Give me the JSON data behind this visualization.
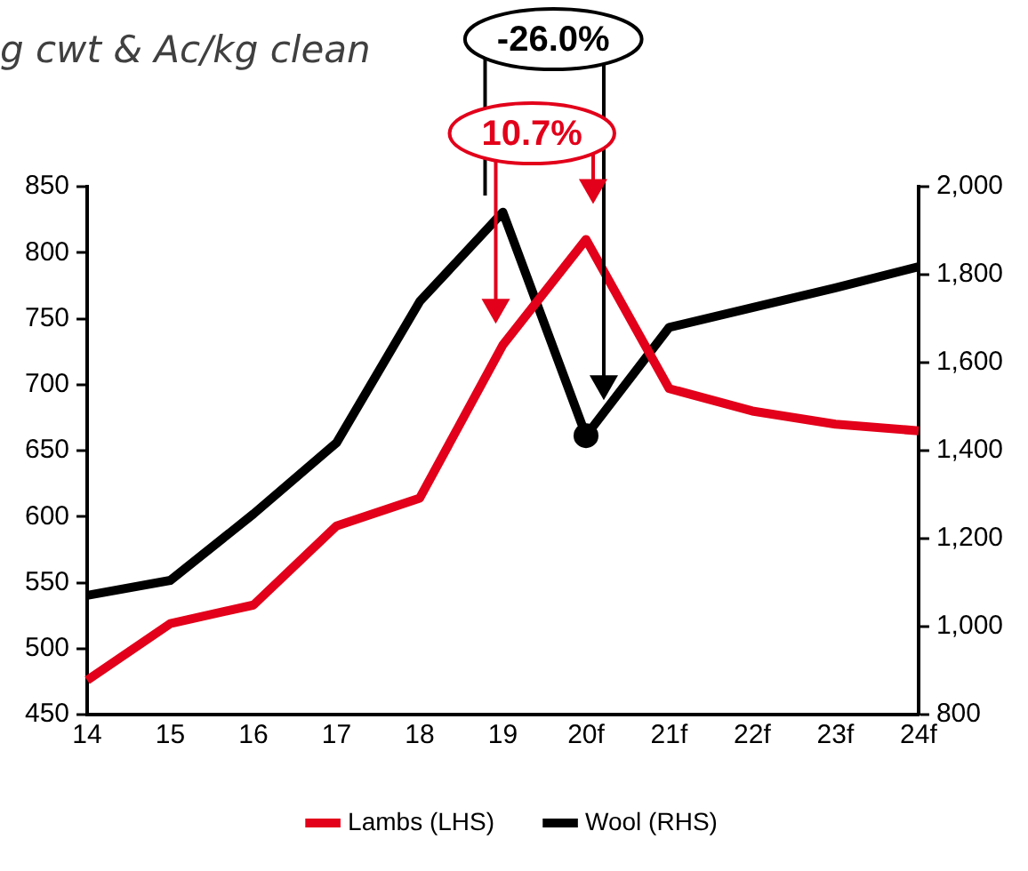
{
  "chart_data": {
    "type": "line",
    "subtitle": "g cwt & Ac/kg clean",
    "categories": [
      "14",
      "15",
      "16",
      "17",
      "18",
      "19",
      "20f",
      "21f",
      "22f",
      "23f",
      "24f"
    ],
    "series": [
      {
        "name": "Lambs (LHS)",
        "color": "#e2001a",
        "values": [
          476,
          519,
          533,
          593,
          614,
          730,
          810,
          697,
          680,
          670,
          665
        ]
      },
      {
        "name": "Wool (RHS)",
        "color": "#000000",
        "axis": "y2",
        "values": [
          1071,
          1105,
          1256,
          1418,
          1739,
          1942,
          1434,
          1680,
          1725,
          1770,
          1818
        ]
      }
    ],
    "ylim": [
      450,
      850
    ],
    "yticks": [
      450,
      500,
      550,
      600,
      650,
      700,
      750,
      800,
      850
    ],
    "y2lim": [
      800,
      2000
    ],
    "y2ticks": [
      {
        "value": 800,
        "label": "800"
      },
      {
        "value": 1000,
        "label": "1,000"
      },
      {
        "value": 1200,
        "label": "1,200"
      },
      {
        "value": 1400,
        "label": "1,400"
      },
      {
        "value": 1600,
        "label": "1,600"
      },
      {
        "value": 1800,
        "label": "1,800"
      },
      {
        "value": 2000,
        "label": "2,000"
      }
    ],
    "annotations": [
      "-26.0%",
      {
        "text": "10.7%",
        "x": "20f",
        "y": 810
      }
    ],
    "grid": false,
    "legend": "bottom",
    "marker": "none",
    "line_style": "solid"
  }
}
